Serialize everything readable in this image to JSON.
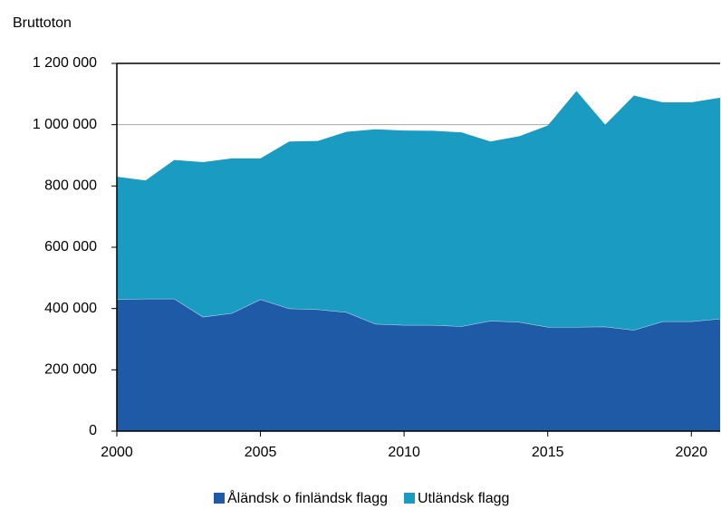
{
  "chart_data": {
    "type": "stacked_area",
    "y_label": "Bruttoton",
    "x": [
      2000,
      2001,
      2002,
      2003,
      2004,
      2005,
      2006,
      2007,
      2008,
      2009,
      2010,
      2011,
      2012,
      2013,
      2014,
      2015,
      2016,
      2017,
      2018,
      2019,
      2020,
      2021
    ],
    "series": [
      {
        "name": "Åländsk o finländsk flagg",
        "color": "#1f5aa6",
        "values": [
          430000,
          432000,
          432000,
          373000,
          385000,
          430000,
          400000,
          397000,
          388000,
          350000,
          346000,
          346000,
          342000,
          360000,
          356000,
          340000,
          340000,
          341000,
          330000,
          358000,
          358000,
          367000
        ]
      },
      {
        "name": "Utländsk flagg",
        "color": "#1a9bc2",
        "values": [
          400000,
          386000,
          453000,
          505000,
          505000,
          460000,
          545000,
          550000,
          589000,
          635000,
          635000,
          634000,
          633000,
          585000,
          606000,
          657000,
          770000,
          659000,
          765000,
          715000,
          715000,
          721000
        ]
      }
    ],
    "xlim": [
      2000,
      2021
    ],
    "xticks": [
      2000,
      2005,
      2010,
      2015,
      2020
    ],
    "ylim": [
      0,
      1200000
    ],
    "yticks": [
      0,
      {
        "value": 200000,
        "label": "200 000"
      },
      {
        "value": 400000,
        "label": "400 000"
      },
      {
        "value": 600000,
        "label": "600 000"
      },
      {
        "value": 800000,
        "label": "800 000"
      },
      {
        "value": 1000000,
        "label": "1 000 000"
      },
      {
        "value": 1200000,
        "label": "1 200 000"
      }
    ],
    "grid": true,
    "legend": "bottom"
  }
}
